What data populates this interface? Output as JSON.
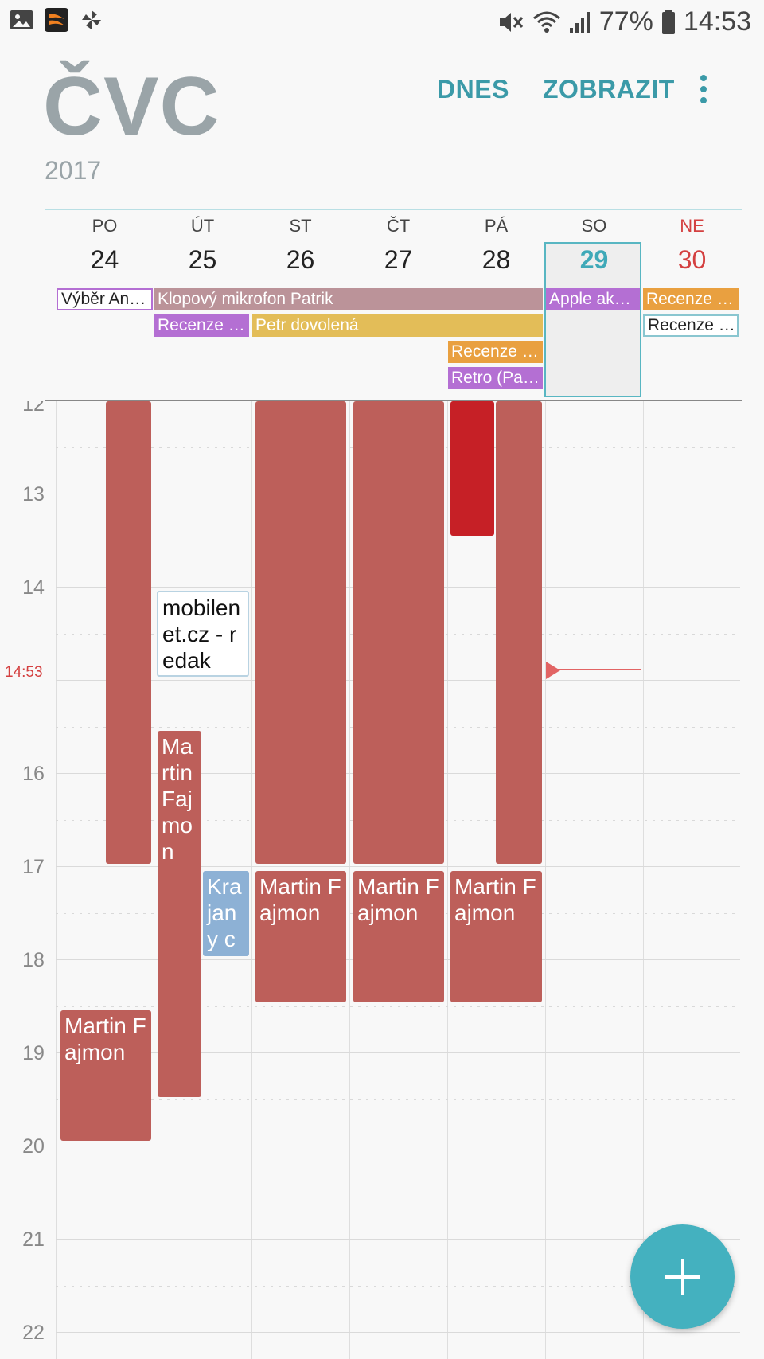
{
  "status_bar": {
    "battery": "77%",
    "time": "14:53",
    "icons": [
      "gallery-icon",
      "app-icon",
      "pinwheel-icon",
      "mute-icon",
      "wifi-icon",
      "signal-icon",
      "battery-icon"
    ]
  },
  "header": {
    "month": "ČVC",
    "year": "2017",
    "today_label": "DNES",
    "view_label": "ZOBRAZIT"
  },
  "days": [
    {
      "dow": "PO",
      "num": "24"
    },
    {
      "dow": "ÚT",
      "num": "25"
    },
    {
      "dow": "ST",
      "num": "26"
    },
    {
      "dow": "ČT",
      "num": "27"
    },
    {
      "dow": "PÁ",
      "num": "28"
    },
    {
      "dow": "SO",
      "num": "29"
    },
    {
      "dow": "NE",
      "num": "30"
    }
  ],
  "all_day_events": [
    "Výběr Andr…",
    "Klopový mikrofon Patrik",
    "Apple akad…",
    "Recenze Sa…",
    "Recenze hr…",
    "Petr dovolená",
    "Recenze Sa…",
    "Recenze Sa…",
    "Retro (Pavl…"
  ],
  "hours": [
    "12",
    "13",
    "14",
    "16",
    "17",
    "18",
    "19",
    "20",
    "21",
    "22"
  ],
  "now_label": "14:53",
  "events": [
    {
      "title": ""
    },
    {
      "title": "Martin Fajmon"
    },
    {
      "title": "mobilenet.cz - redakč…"
    },
    {
      "title": "Martin Fajmon"
    },
    {
      "title": "Krajany ch…"
    },
    {
      "title": ""
    },
    {
      "title": "Martin Fajmon"
    },
    {
      "title": ""
    },
    {
      "title": "Martin Fajmon"
    },
    {
      "title": ""
    },
    {
      "title": ""
    },
    {
      "title": "Martin Fajmon"
    }
  ],
  "colors": {
    "accent": "#3b9aa8",
    "event": "#bd5f5a",
    "event_red": "#c62026",
    "sunday": "#d44040",
    "fab": "#44b1bf"
  }
}
